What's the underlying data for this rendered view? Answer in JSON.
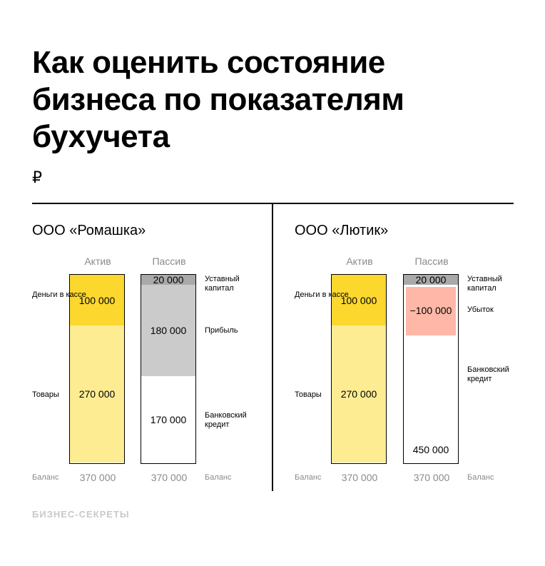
{
  "title_lines": [
    "Как оценить состояние",
    "бизнеса по показателям",
    "бухучета"
  ],
  "currency": "₽",
  "footer": "БИЗНЕС-СЕКРЕТЫ",
  "colors": {
    "cash": "#fcd72e",
    "goods": "#feec93",
    "capital": "#a9a9a9",
    "profit": "#cbcbcb",
    "loss": "#ffb8a7",
    "credit": "#ffffff"
  },
  "chart_data": [
    {
      "type": "bar",
      "company": "ООО «Ромашка»",
      "columns": [
        "Актив",
        "Пассив"
      ],
      "total_max": 370000,
      "series": [
        {
          "column": "Актив",
          "segments": [
            {
              "label": "Деньги в кассе",
              "value": 100000,
              "display": "100 000",
              "color": "#fcd72e"
            },
            {
              "label": "Товары",
              "value": 270000,
              "display": "270 000",
              "color": "#feec93"
            }
          ],
          "total": "370 000",
          "total_label": "Баланс"
        },
        {
          "column": "Пассив",
          "segments": [
            {
              "label": "Уставный капитал",
              "value": 20000,
              "display": "20 000",
              "color": "#a9a9a9"
            },
            {
              "label": "Прибыль",
              "value": 180000,
              "display": "180 000",
              "color": "#cbcbcb"
            },
            {
              "label": "Банковский кредит",
              "value": 170000,
              "display": "170 000",
              "color": "#ffffff"
            }
          ],
          "total": "370 000",
          "total_label": "Баланс"
        }
      ]
    },
    {
      "type": "bar",
      "company": "ООО «Лютик»",
      "columns": [
        "Актив",
        "Пассив"
      ],
      "total_max": 370000,
      "series": [
        {
          "column": "Актив",
          "segments": [
            {
              "label": "Деньги в кассе",
              "value": 100000,
              "display": "100 000",
              "color": "#fcd72e"
            },
            {
              "label": "Товары",
              "value": 270000,
              "display": "270 000",
              "color": "#feec93"
            }
          ],
          "total": "370 000",
          "total_label": "Баланс"
        },
        {
          "column": "Пассив",
          "segments": [
            {
              "label": "Уставный капитал",
              "value": 20000,
              "display": "20 000",
              "color": "#a9a9a9"
            },
            {
              "label": "Убыток",
              "value": -100000,
              "display": "−100 000",
              "color": "#ffb8a7"
            },
            {
              "label": "Банковский кредит",
              "value": 450000,
              "display": "450 000",
              "color": "#ffffff"
            }
          ],
          "total": "370 000",
          "total_label": "Баланс"
        }
      ]
    }
  ]
}
